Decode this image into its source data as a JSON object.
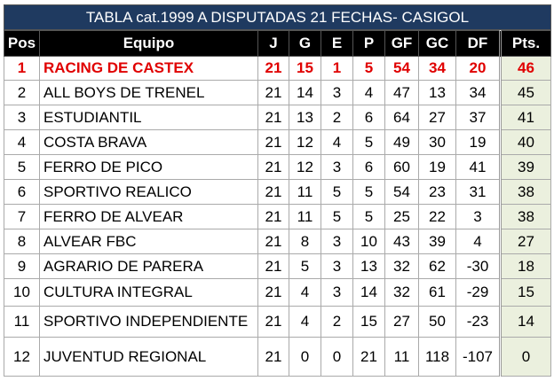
{
  "title": "TABLA cat.1999 A DISPUTADAS 21 FECHAS- CASIGOL",
  "headers": [
    "Pos",
    "Equipo",
    "J",
    "G",
    "E",
    "P",
    "GF",
    "GC",
    "DF",
    "Pts."
  ],
  "highlight_color": "#e00000",
  "rows": [
    [
      "1",
      "RACING DE CASTEX",
      "21",
      "15",
      "1",
      "5",
      "54",
      "34",
      "20",
      "46"
    ],
    [
      "2",
      "ALL BOYS DE TRENEL",
      "21",
      "14",
      "3",
      "4",
      "47",
      "13",
      "34",
      "45"
    ],
    [
      "3",
      "ESTUDIANTIL",
      "21",
      "13",
      "2",
      "6",
      "64",
      "27",
      "37",
      "41"
    ],
    [
      "4",
      "COSTA BRAVA",
      "21",
      "12",
      "4",
      "5",
      "49",
      "30",
      "19",
      "40"
    ],
    [
      "5",
      "FERRO DE PICO",
      "21",
      "12",
      "3",
      "6",
      "60",
      "19",
      "41",
      "39"
    ],
    [
      "6",
      "SPORTIVO REALICO",
      "21",
      "11",
      "5",
      "5",
      "54",
      "23",
      "31",
      "38"
    ],
    [
      "7",
      "FERRO DE ALVEAR",
      "21",
      "11",
      "5",
      "5",
      "25",
      "22",
      "3",
      "38"
    ],
    [
      "8",
      "ALVEAR FBC",
      "21",
      "8",
      "3",
      "10",
      "43",
      "39",
      "4",
      "27"
    ],
    [
      "9",
      "AGRARIO DE PARERA",
      "21",
      "5",
      "3",
      "13",
      "32",
      "62",
      "-30",
      "18"
    ],
    [
      "10",
      "CULTURA INTEGRAL",
      "21",
      "4",
      "3",
      "14",
      "32",
      "61",
      "-29",
      "15"
    ],
    [
      "11",
      "SPORTIVO INDEPENDIENTE",
      "21",
      "4",
      "2",
      "15",
      "27",
      "50",
      "-23",
      "14"
    ],
    [
      "12",
      "JUVENTUD REGIONAL",
      "21",
      "0",
      "0",
      "21",
      "11",
      "118",
      "-107",
      "0"
    ]
  ]
}
